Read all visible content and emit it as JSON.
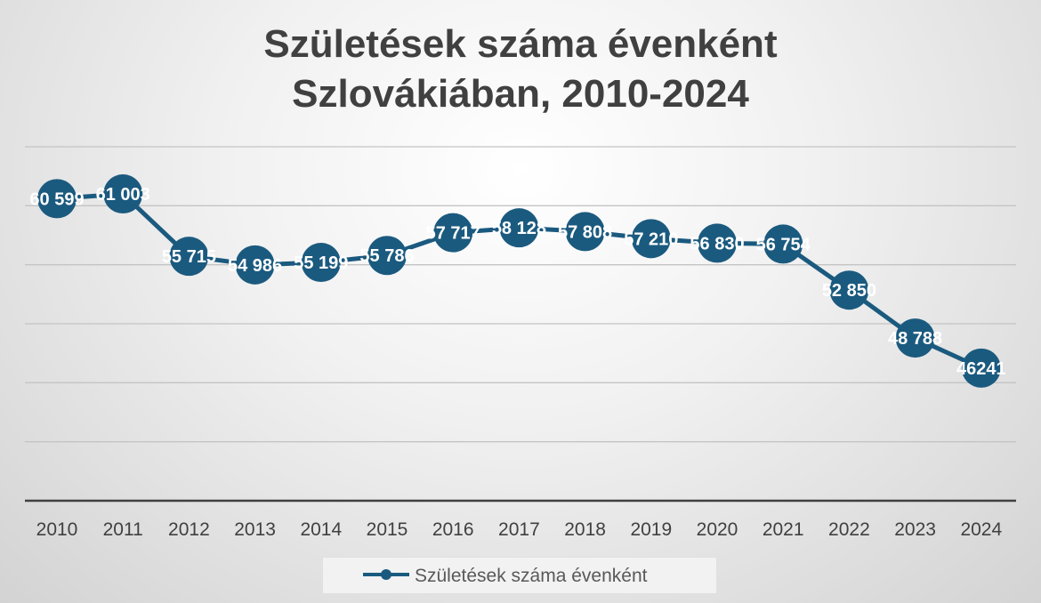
{
  "chart_data": {
    "type": "line",
    "title_lines": [
      "Születések száma évenként",
      "Szlovákiában, 2010-2024"
    ],
    "categories": [
      "2010",
      "2011",
      "2012",
      "2013",
      "2014",
      "2015",
      "2016",
      "2017",
      "2018",
      "2019",
      "2020",
      "2021",
      "2022",
      "2023",
      "2024"
    ],
    "series": [
      {
        "name": "Születések száma évenként",
        "values": [
          60599,
          61003,
          55715,
          54986,
          55199,
          55786,
          57717,
          58128,
          57808,
          57210,
          56830,
          56754,
          52850,
          48788,
          46241
        ],
        "labels": [
          "60 599",
          "61 003",
          "55 715",
          "54 986",
          "55 199",
          "55 786",
          "57 717",
          "58 128",
          "57 808",
          "57 210",
          "56 830",
          "56 754",
          "52 850",
          "48 788",
          "46241"
        ]
      }
    ],
    "ylim": [
      35000,
      65000
    ],
    "grid": true,
    "y_axis_labels_shown": false,
    "legend_position": "bottom",
    "colors": {
      "series": "#1b5a7f",
      "grid": "#c4c4c4",
      "axis": "#404040",
      "label": "#ffffff",
      "tick": "#404040",
      "legend_text": "#595959"
    }
  }
}
